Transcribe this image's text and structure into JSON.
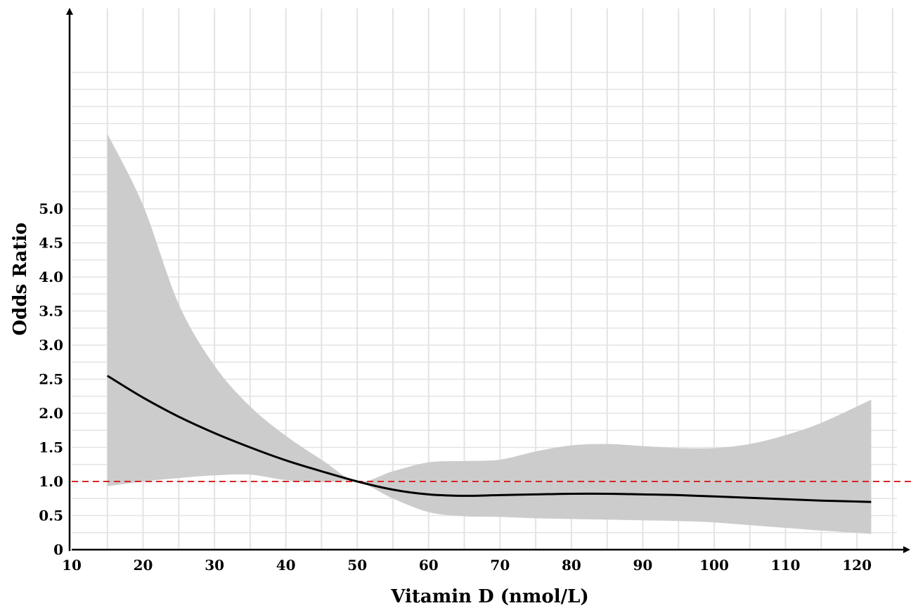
{
  "chart_data": {
    "type": "line",
    "title": "",
    "xlabel": "Vitamin D (nmol/L)",
    "ylabel": "Odds Ratio",
    "xlim": [
      10,
      127
    ],
    "ylim": [
      0,
      7.1
    ],
    "x_ticks": [
      10,
      20,
      30,
      40,
      50,
      60,
      70,
      80,
      90,
      100,
      110,
      120
    ],
    "x_tick_labels": [
      "10",
      "20",
      "30",
      "40",
      "50",
      "60",
      "70",
      "80",
      "90",
      "100",
      "110",
      "120"
    ],
    "y_ticks": [
      0,
      0.5,
      1.0,
      1.5,
      2.0,
      2.5,
      3.0,
      3.5,
      4.0,
      4.5,
      5.0
    ],
    "y_tick_labels": [
      "0",
      "0.5",
      "1.0",
      "1.5",
      "2.0",
      "2.5",
      "3.0",
      "3.5",
      "4.0",
      "4.5",
      "5.0"
    ],
    "grid": true,
    "reference_line": {
      "y": 1.0,
      "style": "dashed",
      "color": "#d62728"
    },
    "series": [
      {
        "x": [
          15,
          20,
          25,
          30,
          35,
          40,
          45,
          50,
          55,
          60,
          65,
          70,
          75,
          80,
          85,
          90,
          95,
          100,
          105,
          110,
          115,
          122
        ],
        "y": [
          2.55,
          2.23,
          1.95,
          1.71,
          1.5,
          1.31,
          1.15,
          1.0,
          0.88,
          0.81,
          0.79,
          0.8,
          0.81,
          0.82,
          0.82,
          0.81,
          0.8,
          0.78,
          0.76,
          0.74,
          0.72,
          0.7
        ],
        "lower": [
          0.93,
          1.0,
          1.05,
          1.09,
          1.1,
          1.02,
          0.99,
          1.0,
          0.75,
          0.55,
          0.49,
          0.48,
          0.46,
          0.45,
          0.44,
          0.43,
          0.42,
          0.4,
          0.36,
          0.32,
          0.28,
          0.23
        ],
        "upper": [
          6.1,
          5.05,
          3.6,
          2.7,
          2.1,
          1.67,
          1.32,
          1.0,
          1.15,
          1.28,
          1.3,
          1.32,
          1.44,
          1.53,
          1.55,
          1.52,
          1.49,
          1.49,
          1.55,
          1.68,
          1.86,
          2.2
        ],
        "line_color": "#000000",
        "band_color": "#cccccc"
      }
    ]
  }
}
